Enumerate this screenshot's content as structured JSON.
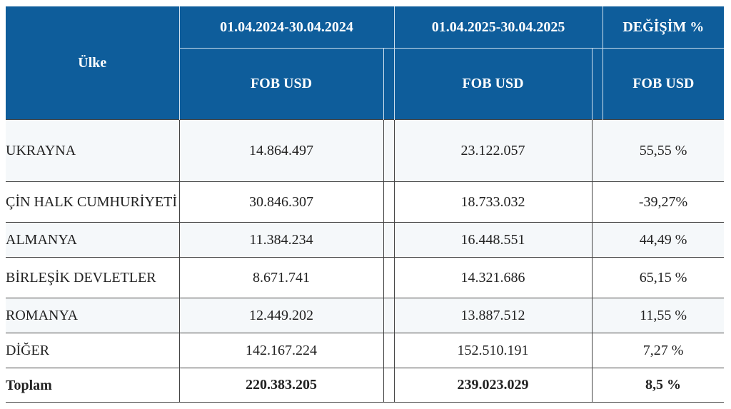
{
  "header": {
    "country": "Ülke",
    "period1": "01.04.2024-30.04.2024",
    "period2": "01.04.2025-30.04.2025",
    "change": "DEĞİŞİM %",
    "sub1": "FOB USD",
    "sub2": "FOB USD",
    "sub3": "FOB USD"
  },
  "rows": [
    {
      "country": "UKRAYNA",
      "v2024": "14.864.497",
      "v2025": "23.122.057",
      "change": "55,55 %"
    },
    {
      "country": "ÇİN HALK CUMHURİYETİ",
      "v2024": "30.846.307",
      "v2025": "18.733.032",
      "change": "-39,27%"
    },
    {
      "country": "ALMANYA",
      "v2024": "11.384.234",
      "v2025": "16.448.551",
      "change": "44,49 %"
    },
    {
      "country": "BİRLEŞİK DEVLETLER",
      "v2024": "8.671.741",
      "v2025": "14.321.686",
      "change": "65,15 %"
    },
    {
      "country": "ROMANYA",
      "v2024": "12.449.202",
      "v2025": "13.887.512",
      "change": "11,55 %"
    },
    {
      "country": "DİĞER",
      "v2024": "142.167.224",
      "v2025": "152.510.191",
      "change": "7,27 %"
    }
  ],
  "total": {
    "label": "Toplam",
    "v2024": "220.383.205",
    "v2025": "239.023.029",
    "change": "8,5 %"
  },
  "colors": {
    "header_bg": "#0e5d9b",
    "header_text": "#ffffff",
    "alt_row": "#f5f8fa",
    "border": "#444444"
  }
}
